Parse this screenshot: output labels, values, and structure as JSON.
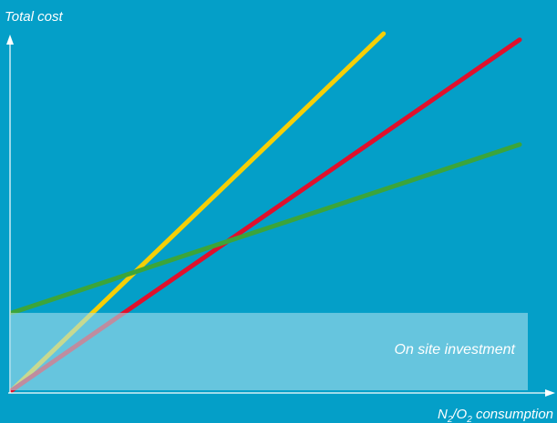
{
  "chart_data": {
    "type": "line",
    "ylabel": "Total cost",
    "xlabel": {
      "parts": [
        {
          "text": "N",
          "sub": false
        },
        {
          "text": "2",
          "sub": true
        },
        {
          "text": "/O",
          "sub": false
        },
        {
          "text": "2",
          "sub": true
        },
        {
          "text": " consumption",
          "sub": false
        }
      ]
    },
    "xlim": [
      0,
      100
    ],
    "ylim": [
      0,
      100
    ],
    "grid": false,
    "legend": "none",
    "band": {
      "label": "On site investment",
      "x_range": [
        0,
        100
      ],
      "y_range": [
        0,
        21.7
      ],
      "color": "#a8e0ec"
    },
    "series": [
      {
        "color": "#f6cf06",
        "x": [
          0,
          73.2
        ],
        "y": [
          0,
          100
        ]
      },
      {
        "color": "#e0102c",
        "x": [
          0,
          100
        ],
        "y": [
          0,
          98.3
        ]
      },
      {
        "color": "#3ca53a",
        "x": [
          0,
          100
        ],
        "y": [
          21.7,
          68.9
        ]
      }
    ]
  }
}
